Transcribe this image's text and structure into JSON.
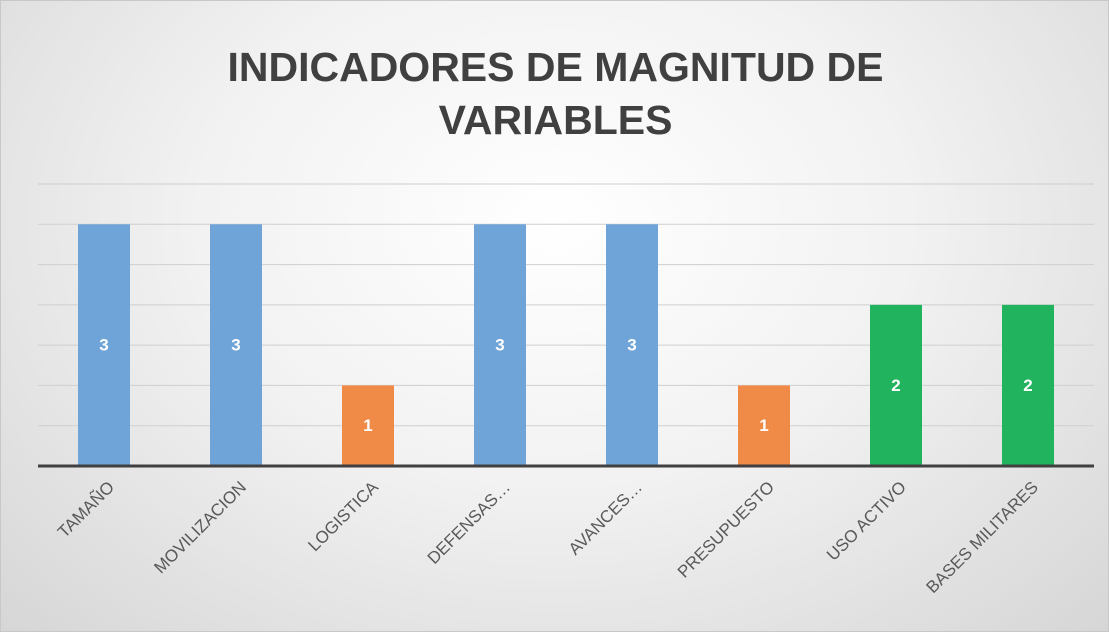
{
  "chart_data": {
    "type": "bar",
    "title": "INDICADORES DE MAGNITUD DE VARIABLES",
    "categories": [
      "TAMAÑO",
      "MOVILIZACION",
      "LOGISTICA",
      "DEFENSAS…",
      "AVANCES…",
      "PRESUPUESTO",
      "USO ACTIVO",
      "BASES MILITARES"
    ],
    "values": [
      3,
      3,
      1,
      3,
      3,
      1,
      2,
      2
    ],
    "colors": [
      "#6fa4d8",
      "#6fa4d8",
      "#ef8a47",
      "#6fa4d8",
      "#6fa4d8",
      "#ef8a47",
      "#22b35e",
      "#22b35e"
    ],
    "ylim": [
      0,
      3.5
    ],
    "yticks": [
      0,
      0.5,
      1,
      1.5,
      2,
      2.5,
      3,
      3.5
    ],
    "grid": true,
    "data_labels": true
  }
}
